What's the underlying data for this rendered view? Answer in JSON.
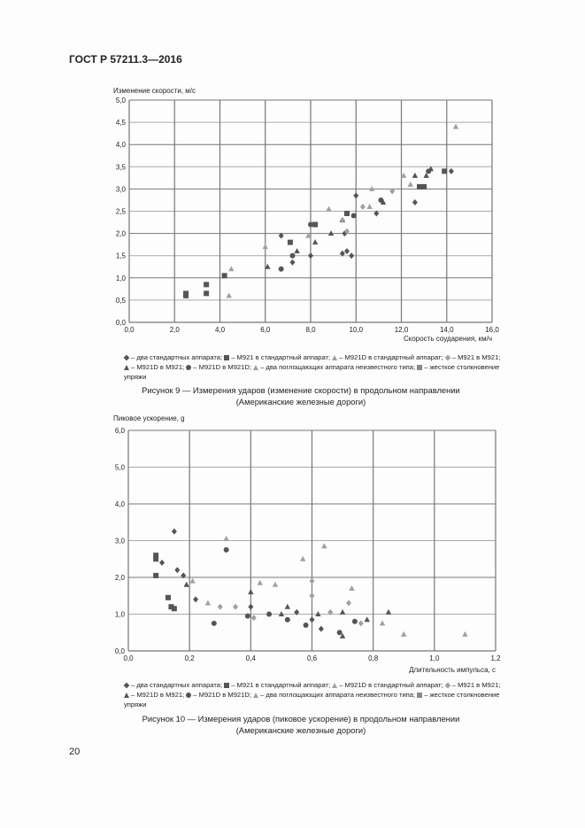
{
  "header": {
    "doc_id": "ГОСТ Р 57211.3—2016"
  },
  "page_number": "20",
  "legend": {
    "items": [
      {
        "marker": "diamond-dark",
        "label": "– два стандартных аппарата;"
      },
      {
        "marker": "square-dark",
        "label": "– M921 в стандартный аппарат;"
      },
      {
        "marker": "triangle-light",
        "label": "– M921D в стандартный аппарат;"
      },
      {
        "marker": "diamond-light",
        "label": "– M921 в M921;"
      },
      {
        "marker": "triangle-dark",
        "label": "– M921D в M921;"
      },
      {
        "marker": "circle-dark",
        "label": "– M921D в M921D;"
      },
      {
        "marker": "triangle-hatched",
        "label": "– два поглощающих аппарата неизвестного типа;"
      },
      {
        "marker": "square-gray",
        "label": "– жесткое столкновение упряжи"
      }
    ]
  },
  "colors": {
    "dark": "#555555",
    "light": "#a0a0a0",
    "grid": "#777777",
    "grid_light": "#aaaaaa"
  },
  "chart_data": [
    {
      "type": "scatter",
      "title": "",
      "caption_line1": "Рисунок 9 — Измерения ударов (изменение скорости) в продольном направлении",
      "caption_line2": "(Американские железные дороги)",
      "ylabel": "Изменение скорости, м/с",
      "xlabel": "Скорость соударения, км/ч",
      "xlim": [
        0,
        16
      ],
      "ylim": [
        0,
        5
      ],
      "xticks": [
        0,
        2,
        4,
        6,
        8,
        10,
        12,
        14,
        16
      ],
      "yticks": [
        0,
        0.5,
        1,
        1.5,
        2,
        2.5,
        3,
        3.5,
        4,
        4.5,
        5
      ],
      "xtick_labels": [
        "0,0",
        "2,0",
        "4,0",
        "6,0",
        "8,0",
        "10,0",
        "12,0",
        "14,0",
        "16,0"
      ],
      "ytick_labels": [
        "0,0",
        "0,5",
        "1,0",
        "1,5",
        "2,0",
        "2,5",
        "3,0",
        "3,5",
        "4,0",
        "4,5",
        "5,0"
      ],
      "grid": true,
      "series": [
        {
          "name": "M921 в стандартный аппарат",
          "marker": "square-dark",
          "points": [
            [
              2.5,
              0.6
            ],
            [
              2.5,
              0.65
            ],
            [
              3.4,
              0.85
            ],
            [
              3.4,
              0.65
            ],
            [
              4.2,
              1.05
            ],
            [
              7.1,
              1.8
            ],
            [
              8.2,
              2.2
            ],
            [
              9.6,
              2.45
            ],
            [
              12.8,
              3.05
            ],
            [
              13.0,
              3.05
            ],
            [
              13.9,
              3.4
            ]
          ]
        },
        {
          "name": "два стандартных аппарата",
          "marker": "diamond-dark",
          "points": [
            [
              6.7,
              1.95
            ],
            [
              7.2,
              1.35
            ],
            [
              8.0,
              1.5
            ],
            [
              9.4,
              1.55
            ],
            [
              9.6,
              1.6
            ],
            [
              10.0,
              2.85
            ],
            [
              9.5,
              2.0
            ],
            [
              10.9,
              2.45
            ],
            [
              12.6,
              2.7
            ],
            [
              14.2,
              3.4
            ],
            [
              9.8,
              1.5
            ]
          ]
        },
        {
          "name": "M921D в M921",
          "marker": "triangle-dark",
          "points": [
            [
              6.1,
              1.25
            ],
            [
              7.4,
              1.6
            ],
            [
              8.2,
              1.8
            ],
            [
              9.4,
              2.3
            ],
            [
              12.6,
              3.3
            ],
            [
              13.1,
              3.3
            ],
            [
              13.3,
              3.45
            ],
            [
              11.2,
              2.7
            ],
            [
              8.9,
              2.0
            ]
          ]
        },
        {
          "name": "M921D в стандартный аппарат",
          "marker": "triangle-light",
          "points": [
            [
              4.5,
              1.2
            ],
            [
              6.0,
              1.7
            ],
            [
              7.9,
              1.95
            ],
            [
              8.8,
              2.55
            ],
            [
              10.6,
              2.6
            ],
            [
              12.1,
              3.3
            ],
            [
              14.4,
              4.4
            ],
            [
              4.4,
              0.6
            ],
            [
              10.7,
              3.0
            ],
            [
              12.4,
              3.1
            ]
          ]
        },
        {
          "name": "M921D в M921D",
          "marker": "circle-dark",
          "points": [
            [
              7.2,
              1.5
            ],
            [
              8.0,
              2.2
            ],
            [
              9.9,
              2.4
            ],
            [
              11.1,
              2.75
            ],
            [
              13.2,
              3.4
            ],
            [
              6.7,
              1.2
            ]
          ]
        },
        {
          "name": "M921 в M921",
          "marker": "diamond-light",
          "points": [
            [
              9.4,
              2.3
            ],
            [
              10.3,
              2.6
            ],
            [
              11.6,
              2.95
            ],
            [
              9.6,
              2.05
            ]
          ]
        }
      ]
    },
    {
      "type": "scatter",
      "title": "",
      "caption_line1": "Рисунок 10 — Измерения ударов (пиковое ускорение) в продольном направлении",
      "caption_line2": "(Американские железные дороги)",
      "ylabel": "Пиковое ускорение, g",
      "xlabel": "Длительность импульса, с",
      "xlim": [
        0,
        1.2
      ],
      "ylim": [
        0,
        6
      ],
      "xticks": [
        0,
        0.2,
        0.4,
        0.6,
        0.8,
        1.0,
        1.2
      ],
      "yticks": [
        0,
        1,
        2,
        3,
        4,
        5,
        6
      ],
      "xtick_labels": [
        "0,0",
        "0,2",
        "0,4",
        "0,6",
        "0,8",
        "1,0",
        "1,2"
      ],
      "ytick_labels": [
        "0,0",
        "1,0",
        "2,0",
        "3,0",
        "4,0",
        "5,0",
        "6,0"
      ],
      "grid": true,
      "series": [
        {
          "name": "M921 в стандартный аппарат",
          "marker": "square-dark",
          "points": [
            [
              0.09,
              2.6
            ],
            [
              0.09,
              2.5
            ],
            [
              0.09,
              2.05
            ],
            [
              0.13,
              1.45
            ],
            [
              0.14,
              1.2
            ],
            [
              0.15,
              1.15
            ]
          ]
        },
        {
          "name": "два стандартных аппарата",
          "marker": "diamond-dark",
          "points": [
            [
              0.11,
              2.4
            ],
            [
              0.15,
              3.25
            ],
            [
              0.16,
              2.2
            ],
            [
              0.18,
              2.05
            ],
            [
              0.22,
              1.4
            ],
            [
              0.4,
              1.2
            ],
            [
              0.6,
              0.85
            ],
            [
              0.63,
              0.6
            ],
            [
              0.55,
              1.05
            ]
          ]
        },
        {
          "name": "M921D в M921",
          "marker": "triangle-dark",
          "points": [
            [
              0.19,
              1.8
            ],
            [
              0.4,
              1.6
            ],
            [
              0.5,
              1.0
            ],
            [
              0.52,
              1.2
            ],
            [
              0.62,
              1.0
            ],
            [
              0.7,
              0.4
            ],
            [
              0.78,
              0.85
            ],
            [
              0.85,
              1.05
            ],
            [
              0.7,
              1.05
            ]
          ]
        },
        {
          "name": "M921D в стандартный аппарат",
          "marker": "triangle-light",
          "points": [
            [
              0.21,
              1.9
            ],
            [
              0.26,
              1.3
            ],
            [
              0.32,
              3.05
            ],
            [
              0.43,
              1.85
            ],
            [
              0.48,
              1.8
            ],
            [
              0.57,
              2.5
            ],
            [
              0.64,
              2.85
            ],
            [
              0.73,
              1.7
            ],
            [
              0.9,
              0.45
            ],
            [
              1.1,
              0.45
            ],
            [
              0.83,
              0.75
            ]
          ]
        },
        {
          "name": "M921D в M921D",
          "marker": "circle-dark",
          "points": [
            [
              0.28,
              0.75
            ],
            [
              0.32,
              2.75
            ],
            [
              0.39,
              0.95
            ],
            [
              0.46,
              1.0
            ],
            [
              0.52,
              0.85
            ],
            [
              0.58,
              0.7
            ],
            [
              0.74,
              0.8
            ],
            [
              0.69,
              0.5
            ]
          ]
        },
        {
          "name": "M921 в M921",
          "marker": "diamond-light",
          "points": [
            [
              0.35,
              1.2
            ],
            [
              0.41,
              0.9
            ],
            [
              0.6,
              1.5
            ],
            [
              0.6,
              1.9
            ],
            [
              0.66,
              1.05
            ],
            [
              0.72,
              1.3
            ],
            [
              0.76,
              0.75
            ],
            [
              0.3,
              1.2
            ]
          ]
        }
      ]
    }
  ]
}
